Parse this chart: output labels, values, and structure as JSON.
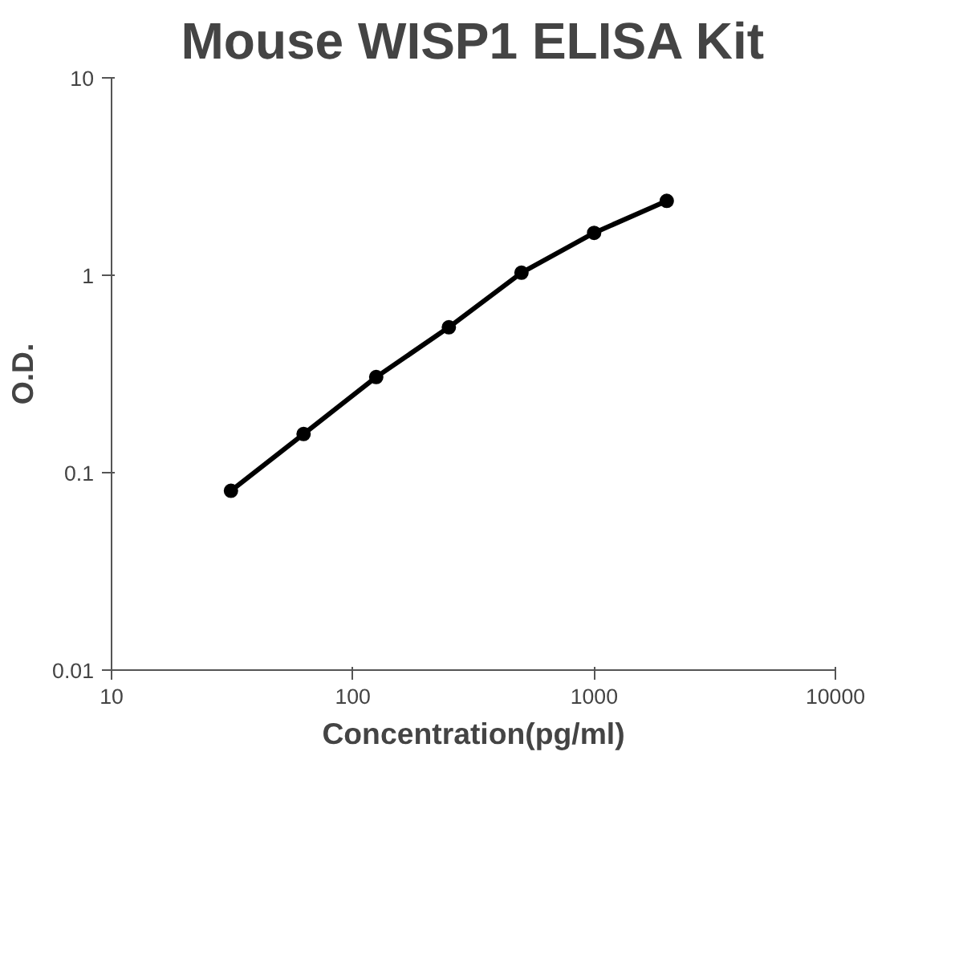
{
  "chart_data": {
    "type": "line",
    "title": "Mouse WISP1 ELISA Kit",
    "xlabel": "Concentration(pg/ml)",
    "ylabel": "O.D.",
    "x": [
      31.25,
      62.5,
      125,
      250,
      500,
      1000,
      2000
    ],
    "series": [
      {
        "color": "#000000",
        "values": [
          0.081,
          0.157,
          0.305,
          0.545,
          1.03,
          1.64,
          2.38
        ]
      }
    ],
    "log": "xy",
    "xlim": [
      10,
      10000
    ],
    "ylim": [
      0.01,
      10
    ],
    "xticks": [
      10,
      100,
      1000,
      10000
    ],
    "yticks": [
      0.01,
      0.1,
      1,
      10
    ],
    "marker": "circle",
    "line_style": "solid",
    "grid": false
  }
}
